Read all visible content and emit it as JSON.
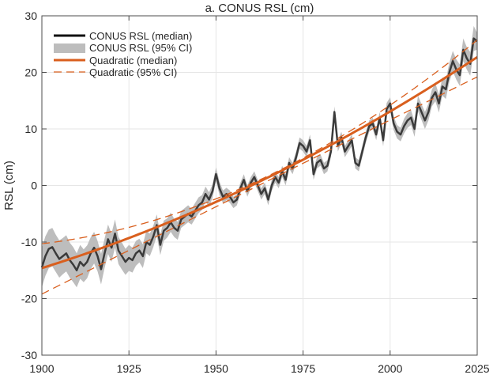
{
  "chart_data": {
    "type": "line",
    "title": "a. CONUS RSL (cm)",
    "xlabel": "",
    "ylabel": "RSL (cm)",
    "xlim": [
      1900,
      2025
    ],
    "ylim": [
      -30,
      30
    ],
    "xticks": [
      1900,
      1925,
      1950,
      1975,
      2000,
      2025
    ],
    "yticks": [
      -30,
      -20,
      -10,
      0,
      10,
      20,
      30
    ],
    "grid": true,
    "legend_position": "top-left",
    "legend": [
      {
        "label": "CONUS RSL (median)",
        "style": "solid-dark"
      },
      {
        "label": "CONUS RSL (95% CI)",
        "style": "gray-band"
      },
      {
        "label": "Quadratic (median)",
        "style": "solid-orange"
      },
      {
        "label": "Quadratic (95% CI)",
        "style": "dashed-orange"
      }
    ],
    "colors": {
      "median": "#3a3a3a",
      "band": "#bdbdbd",
      "quadratic": "#d95f1e",
      "grid": "#e6e6e6",
      "axis": "#4d4d4d"
    },
    "series": [
      {
        "name": "CONUS RSL (median)",
        "x_start": 1900,
        "values": [
          -14.5,
          -12.5,
          -11.2,
          -10.9,
          -12.0,
          -13.0,
          -12.5,
          -12.0,
          -13.2,
          -14.0,
          -15.0,
          -13.5,
          -14.2,
          -13.5,
          -12.0,
          -11.0,
          -12.5,
          -14.8,
          -12.0,
          -9.5,
          -11.0,
          -8.5,
          -11.5,
          -12.5,
          -13.5,
          -12.8,
          -13.2,
          -12.0,
          -11.5,
          -12.5,
          -10.0,
          -10.5,
          -9.0,
          -7.0,
          -10.5,
          -8.0,
          -7.5,
          -6.5,
          -7.5,
          -8.0,
          -6.0,
          -5.5,
          -5.0,
          -5.5,
          -4.5,
          -3.5,
          -3.0,
          -1.5,
          -2.5,
          -1.0,
          2.0,
          -0.5,
          -2.0,
          -1.5,
          -2.0,
          -3.0,
          -2.5,
          -0.5,
          1.0,
          -1.0,
          0.5,
          1.5,
          0.0,
          -1.5,
          -0.5,
          -2.5,
          0.0,
          1.5,
          0.5,
          2.5,
          1.0,
          4.0,
          3.0,
          5.0,
          7.5,
          7.0,
          6.0,
          8.0,
          2.0,
          4.0,
          4.5,
          3.0,
          3.5,
          6.0,
          13.0,
          7.0,
          8.5,
          6.0,
          7.0,
          8.0,
          4.0,
          3.5,
          6.0,
          8.5,
          10.5,
          11.0,
          9.0,
          12.0,
          8.0,
          13.5,
          14.5,
          11.0,
          9.5,
          9.0,
          10.5,
          11.5,
          12.0,
          10.0,
          14.5,
          13.0,
          11.5,
          13.0,
          15.5,
          16.5,
          14.5,
          17.5,
          17.0,
          20.0,
          22.0,
          20.5,
          19.5,
          24.0,
          22.5,
          21.5,
          26.0,
          25.5
        ]
      },
      {
        "name": "CONUS RSL (95% CI)",
        "x_start": 1900,
        "halfwidth": [
          3.5,
          3.5,
          3.4,
          3.4,
          3.3,
          3.3,
          3.2,
          3.2,
          3.1,
          3.1,
          3.0,
          3.0,
          2.9,
          2.9,
          2.8,
          2.8,
          2.7,
          2.7,
          2.6,
          2.6,
          2.5,
          2.5,
          2.4,
          2.4,
          2.3,
          2.3,
          2.2,
          2.2,
          2.1,
          2.1,
          2.0,
          2.0,
          1.9,
          1.9,
          1.8,
          1.8,
          1.7,
          1.7,
          1.6,
          1.6,
          1.5,
          1.5,
          1.5,
          1.4,
          1.4,
          1.4,
          1.3,
          1.3,
          1.3,
          1.2,
          1.2,
          1.2,
          1.1,
          1.1,
          1.1,
          1.0,
          1.0,
          1.0,
          1.0,
          1.0,
          1.0,
          1.0,
          1.0,
          1.0,
          1.0,
          1.0,
          1.0,
          1.0,
          1.0,
          1.0,
          1.0,
          1.0,
          1.0,
          1.0,
          1.0,
          1.0,
          1.0,
          1.0,
          1.0,
          1.0,
          1.0,
          1.0,
          1.0,
          1.0,
          1.0,
          1.0,
          1.0,
          1.0,
          1.0,
          1.0,
          1.0,
          1.0,
          1.0,
          1.0,
          1.0,
          1.0,
          1.0,
          1.0,
          1.1,
          1.1,
          1.1,
          1.2,
          1.2,
          1.2,
          1.3,
          1.3,
          1.3,
          1.4,
          1.4,
          1.4,
          1.5,
          1.5,
          1.5,
          1.6,
          1.6,
          1.6,
          1.7,
          1.7,
          1.8,
          1.8,
          1.9,
          2.0,
          2.0,
          2.1,
          2.2
        ]
      },
      {
        "name": "Quadratic (median)",
        "coefficients_t_from_1900": [
          -14.6,
          0.191,
          0.000859
        ]
      },
      {
        "name": "Quadratic (95% CI) upper",
        "coefficients_t_from_1900": [
          -10.3,
          0.0727,
          0.001723
        ]
      },
      {
        "name": "Quadratic (95% CI) lower",
        "coefficients_t_from_1900": [
          -19.2,
          0.31,
          -2.28e-05
        ]
      }
    ]
  }
}
